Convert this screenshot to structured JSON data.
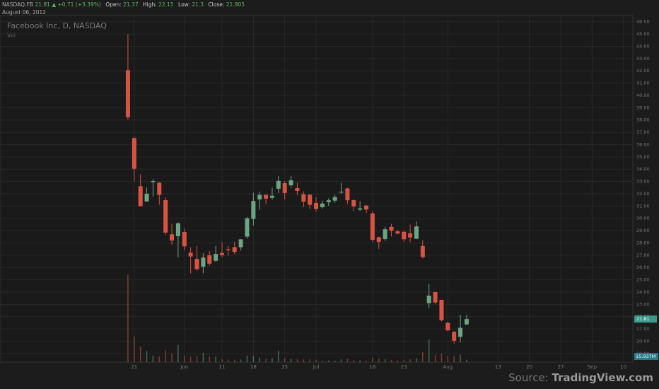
{
  "header": {
    "symbol": "NASDAQ:FB",
    "last": "21.81",
    "change": "▲ +0.71 (+3.39%)",
    "open_label": "Open:",
    "open": "21.37",
    "high_label": "High:",
    "high": "22.15",
    "low_label": "Low:",
    "low": "21.3",
    "close_label": "Close:",
    "close": "21.805",
    "date": "August 06, 2012"
  },
  "footer": {
    "source_label": "Source:",
    "source_site": "TradingView.com"
  },
  "chart_data": {
    "type": "candlestick",
    "title": "Facebook Inc, D, NASDAQ",
    "volume_title": "Vol",
    "last_price_label": "21.81",
    "last_volume_label": "15.937M",
    "up_color": "#6ba583",
    "down_color": "#d75442",
    "grid": true,
    "ylim": [
      18.3,
      46.5
    ],
    "yticks": [
      {
        "value": 19,
        "label": "19.00"
      },
      {
        "value": 20,
        "label": "20.00"
      },
      {
        "value": 21,
        "label": "21.00"
      },
      {
        "value": 22,
        "label": "22.00"
      },
      {
        "value": 23,
        "label": "23.00"
      },
      {
        "value": 24,
        "label": "24.00"
      },
      {
        "value": 25,
        "label": "25.00"
      },
      {
        "value": 26,
        "label": "26.00"
      },
      {
        "value": 27,
        "label": "27.00"
      },
      {
        "value": 28,
        "label": "28.00"
      },
      {
        "value": 29,
        "label": "29.00"
      },
      {
        "value": 30,
        "label": "30.00"
      },
      {
        "value": 31,
        "label": "31.00"
      },
      {
        "value": 32,
        "label": "32.00"
      },
      {
        "value": 33,
        "label": "33.00"
      },
      {
        "value": 34,
        "label": "34.00"
      },
      {
        "value": 35,
        "label": "35.00"
      },
      {
        "value": 36,
        "label": "36.00"
      },
      {
        "value": 37,
        "label": "37.00"
      },
      {
        "value": 38,
        "label": "38.00"
      },
      {
        "value": 39,
        "label": "39.00"
      },
      {
        "value": 40,
        "label": "40.00"
      },
      {
        "value": 41,
        "label": "41.00"
      },
      {
        "value": 42,
        "label": "42.00"
      },
      {
        "value": 43,
        "label": "43.00"
      },
      {
        "value": 44,
        "label": "44.00"
      },
      {
        "value": 45,
        "label": "45.00"
      },
      {
        "value": 46,
        "label": "46.00"
      }
    ],
    "categories": [
      null,
      "21",
      null,
      null,
      null,
      null,
      null,
      null,
      null,
      "Jun",
      null,
      null,
      null,
      null,
      null,
      "11",
      null,
      null,
      null,
      null,
      "18",
      null,
      null,
      null,
      null,
      "25",
      null,
      null,
      null,
      null,
      "Jul",
      null,
      null,
      null,
      null,
      null,
      null,
      null,
      null,
      "16",
      null,
      null,
      null,
      null,
      "23",
      null,
      null,
      null,
      null,
      null,
      null,
      "Aug",
      null,
      null,
      null,
      null,
      null,
      null,
      null,
      "13",
      null,
      null,
      null,
      null,
      "20",
      null,
      null,
      null,
      null,
      "27",
      null,
      null,
      null,
      null,
      "Sep",
      null,
      null,
      null,
      null,
      "10",
      null
    ],
    "open": [
      42.05,
      36.53,
      32.61,
      31.37,
      32.95,
      32.9,
      31.48,
      28.7,
      28.55,
      28.89,
      27.2,
      26.7,
      26.07,
      27.0,
      26.55,
      27.18,
      27.48,
      27.66,
      27.65,
      28.51,
      29.96,
      31.54,
      31.92,
      31.67,
      32.41,
      32.86,
      32.69,
      32.46,
      31.96,
      31.92,
      31.25,
      30.91,
      31.32,
      31.44,
      32.1,
      32.43,
      31.48,
      30.7,
      31.04,
      30.4,
      28.46,
      28.31,
      29.3,
      28.94,
      28.9,
      28.78,
      28.34,
      27.75,
      23.1,
      24.0,
      23.37,
      21.5,
      20.77,
      20.36,
      21.37,
      null,
      null,
      null,
      null,
      null,
      null,
      null,
      null,
      null,
      null,
      null,
      null,
      null,
      null,
      null,
      null,
      null,
      null,
      null,
      null,
      null,
      null,
      null,
      null,
      null,
      null
    ],
    "high": [
      45.0,
      36.66,
      33.59,
      32.5,
      33.21,
      32.95,
      31.69,
      29.55,
      29.67,
      29.15,
      27.65,
      27.76,
      27.17,
      27.35,
      27.76,
      28.07,
      27.77,
      28.1,
      28.32,
      30.1,
      32.08,
      32.18,
      31.93,
      32.5,
      33.45,
      33.02,
      33.44,
      32.9,
      32.19,
      31.99,
      31.73,
      31.44,
      31.63,
      31.9,
      32.88,
      32.48,
      31.57,
      31.4,
      31.08,
      30.58,
      28.5,
      29.29,
      29.55,
      29.06,
      29.0,
      29.49,
      29.75,
      28.23,
      24.67,
      24.04,
      23.37,
      21.58,
      20.84,
      22.16,
      22.15,
      null,
      null,
      null,
      null,
      null,
      null,
      null,
      null,
      null,
      null,
      null,
      null,
      null,
      null,
      null,
      null,
      null,
      null,
      null,
      null,
      null,
      null,
      null,
      null,
      null,
      null
    ],
    "low": [
      38.0,
      33.0,
      30.94,
      31.36,
      31.77,
      31.11,
      28.65,
      27.86,
      26.83,
      27.39,
      25.52,
      25.75,
      25.52,
      26.15,
      26.44,
      26.84,
      26.96,
      27.1,
      27.38,
      28.35,
      29.41,
      30.7,
      31.15,
      31.51,
      32.06,
      31.55,
      32.5,
      31.9,
      30.9,
      30.76,
      30.55,
      30.8,
      31.02,
      31.26,
      31.99,
      31.16,
      30.58,
      30.6,
      30.43,
      28.09,
      27.5,
      28.15,
      28.53,
      28.7,
      28.1,
      28.07,
      28.3,
      26.73,
      22.71,
      23.03,
      21.61,
      20.84,
      19.82,
      19.9,
      21.3,
      null,
      null,
      null,
      null,
      null,
      null,
      null,
      null,
      null,
      null,
      null,
      null,
      null,
      null,
      null,
      null,
      null,
      null,
      null,
      null,
      null,
      null,
      null,
      null,
      null,
      null
    ],
    "close": [
      38.23,
      34.03,
      31.0,
      32.0,
      33.03,
      31.91,
      28.84,
      28.19,
      29.6,
      27.72,
      26.9,
      25.87,
      26.81,
      26.31,
      27.1,
      27.01,
      27.4,
      27.27,
      28.29,
      30.01,
      31.41,
      31.91,
      31.6,
      31.84,
      33.05,
      32.06,
      33.1,
      32.23,
      31.36,
      31.1,
      30.77,
      31.2,
      31.47,
      31.73,
      32.17,
      31.47,
      30.97,
      30.81,
      30.72,
      28.25,
      28.09,
      29.11,
      29.0,
      28.76,
      28.3,
      28.45,
      29.34,
      26.85,
      23.71,
      23.15,
      21.71,
      20.88,
      20.04,
      21.09,
      21.805,
      null,
      null,
      null,
      null,
      null,
      null,
      null,
      null,
      null,
      null,
      null,
      null,
      null,
      null,
      null,
      null,
      null,
      null,
      null,
      null,
      null,
      null,
      null,
      null,
      null,
      null
    ],
    "volume": [
      573.6,
      168.2,
      101.8,
      73.6,
      42.6,
      37.1,
      78.1,
      57.3,
      111.6,
      41.9,
      35.2,
      42.0,
      61.5,
      38.0,
      36.1,
      20.6,
      17.1,
      16.1,
      16.4,
      43.6,
      42.5,
      30.0,
      21.9,
      26.6,
      74.8,
      24.4,
      23.7,
      19.2,
      17.7,
      19.1,
      14.7,
      9.0,
      11.3,
      9.7,
      17.8,
      21.3,
      13.6,
      11.3,
      8.0,
      28.6,
      22.6,
      19.1,
      13.8,
      11.1,
      12.4,
      18.4,
      24.7,
      64.6,
      148.7,
      46.2,
      57.1,
      41.5,
      40.1,
      48.6,
      15.937,
      null,
      null,
      null,
      null,
      null,
      null,
      null,
      null,
      null,
      null,
      null,
      null,
      null,
      null,
      null,
      null,
      null,
      null,
      null,
      null,
      null,
      null,
      null,
      null,
      null,
      null
    ]
  }
}
